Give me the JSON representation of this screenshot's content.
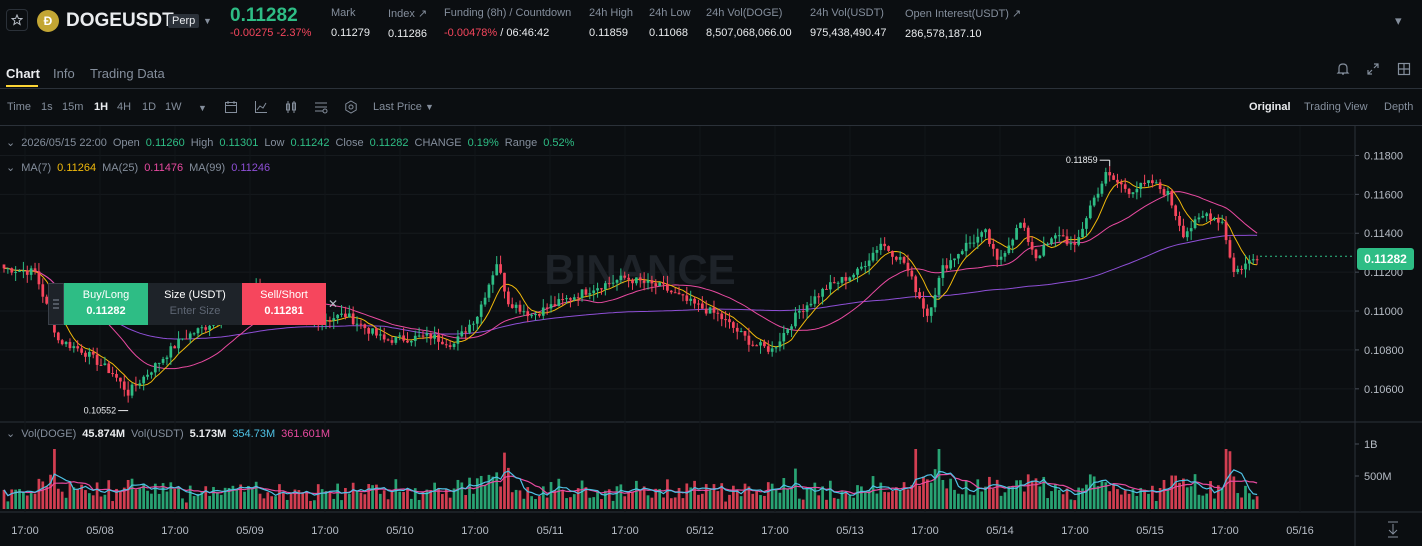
{
  "header": {
    "symbol": "DOGEUSDT",
    "badge": "Perp",
    "last_price": "0.11282",
    "change": "-0.00275",
    "change_pct": "-2.37%",
    "stats": [
      {
        "label": "Mark",
        "value": "0.11279"
      },
      {
        "label": "Index ↗",
        "value": "0.11286"
      },
      {
        "label": "Funding (8h) / Countdown",
        "value": "-0.00478%",
        "value2": "/ 06:46:42"
      },
      {
        "label": "24h High",
        "value": "0.11859"
      },
      {
        "label": "24h Low",
        "value": "0.11068"
      },
      {
        "label": "24h Vol(DOGE)",
        "value": "8,507,068,066.00"
      },
      {
        "label": "24h Vol(USDT)",
        "value": "975,438,490.47"
      },
      {
        "label": "Open Interest(USDT) ↗",
        "value": "286,578,187.10"
      }
    ]
  },
  "tabs": [
    "Chart",
    "Info",
    "Trading Data"
  ],
  "toolbar": {
    "intervals": [
      "Time",
      "1s",
      "15m",
      "1H",
      "4H",
      "1D",
      "1W"
    ],
    "selected_interval": "1H",
    "price_type": "Last Price",
    "views": [
      "Original",
      "Trading View",
      "Depth"
    ],
    "selected_view": "Original"
  },
  "ohlc": {
    "date": "2026/05/15 22:00",
    "open_label": "Open",
    "open": "0.11260",
    "high_label": "High",
    "high": "0.11301",
    "low_label": "Low",
    "low": "0.11242",
    "close_label": "Close",
    "close": "0.11282",
    "change_label": "CHANGE",
    "change": "0.19%",
    "range_label": "Range",
    "range": "0.52%"
  },
  "ma_legend": [
    {
      "name": "MA(7)",
      "value": "0.11264",
      "color": "#f0b90b"
    },
    {
      "name": "MA(25)",
      "value": "0.11476",
      "color": "#e84aa0"
    },
    {
      "name": "MA(99)",
      "value": "0.11246",
      "color": "#8e4fd6"
    }
  ],
  "vol_legend": {
    "vol_doge_label": "Vol(DOGE)",
    "vol_doge": "45.874M",
    "vol_usdt_label": "Vol(USDT)",
    "vol_usdt": "5.173M",
    "ma1": "354.73M",
    "ma2": "361.601M"
  },
  "trade": {
    "buy_label": "Buy/Long",
    "buy_price": "0.11282",
    "size_label": "Size (USDT)",
    "size_placeholder": "Enter Size",
    "sell_label": "Sell/Short",
    "sell_price": "0.11281"
  },
  "watermark": "BINANCE",
  "colors": {
    "up": "#2ebd85",
    "down": "#f6465d",
    "accent": "#fcd535",
    "bg": "#0b0e11"
  },
  "chart_data": {
    "type": "candlestick",
    "y_ticks": [
      "0.11800",
      "0.11600",
      "0.11400",
      "0.11200",
      "0.11000",
      "0.10800",
      "0.10600"
    ],
    "ylim": [
      0.1045,
      0.119
    ],
    "vol_ticks": [
      "1B",
      "500M"
    ],
    "x_ticks": [
      "17:00",
      "05/08",
      "17:00",
      "05/09",
      "17:00",
      "05/10",
      "17:00",
      "05/11",
      "17:00",
      "05/12",
      "17:00",
      "05/13",
      "17:00",
      "05/14",
      "17:00",
      "05/15",
      "17:00",
      "05/16"
    ],
    "annotations": {
      "high": "0.11859",
      "low": "0.10552"
    },
    "current_price": "0.11282",
    "close_anchors": [
      [
        0,
        0.1122
      ],
      [
        8,
        0.112
      ],
      [
        14,
        0.1085
      ],
      [
        20,
        0.108
      ],
      [
        28,
        0.1068
      ],
      [
        32,
        0.1058
      ],
      [
        38,
        0.107
      ],
      [
        46,
        0.1086
      ],
      [
        52,
        0.1092
      ],
      [
        58,
        0.1102
      ],
      [
        65,
        0.1112
      ],
      [
        72,
        0.1106
      ],
      [
        78,
        0.1094
      ],
      [
        88,
        0.1098
      ],
      [
        98,
        0.1085
      ],
      [
        110,
        0.1087
      ],
      [
        116,
        0.1083
      ],
      [
        122,
        0.1098
      ],
      [
        127,
        0.1125
      ],
      [
        130,
        0.1105
      ],
      [
        136,
        0.1098
      ],
      [
        145,
        0.1106
      ],
      [
        152,
        0.1112
      ],
      [
        160,
        0.1117
      ],
      [
        170,
        0.1112
      ],
      [
        176,
        0.1105
      ],
      [
        184,
        0.1098
      ],
      [
        193,
        0.1083
      ],
      [
        198,
        0.108
      ],
      [
        205,
        0.11
      ],
      [
        212,
        0.1112
      ],
      [
        220,
        0.112
      ],
      [
        226,
        0.1135
      ],
      [
        232,
        0.1125
      ],
      [
        238,
        0.1098
      ],
      [
        242,
        0.1122
      ],
      [
        248,
        0.1134
      ],
      [
        253,
        0.114
      ],
      [
        256,
        0.1125
      ],
      [
        262,
        0.1145
      ],
      [
        266,
        0.1128
      ],
      [
        272,
        0.114
      ],
      [
        276,
        0.1132
      ],
      [
        280,
        0.1154
      ],
      [
        284,
        0.117
      ],
      [
        290,
        0.1162
      ],
      [
        296,
        0.1166
      ],
      [
        300,
        0.116
      ],
      [
        304,
        0.114
      ],
      [
        310,
        0.115
      ],
      [
        314,
        0.1146
      ],
      [
        317,
        0.112
      ],
      [
        320,
        0.1124
      ],
      [
        323,
        0.1128
      ]
    ]
  }
}
